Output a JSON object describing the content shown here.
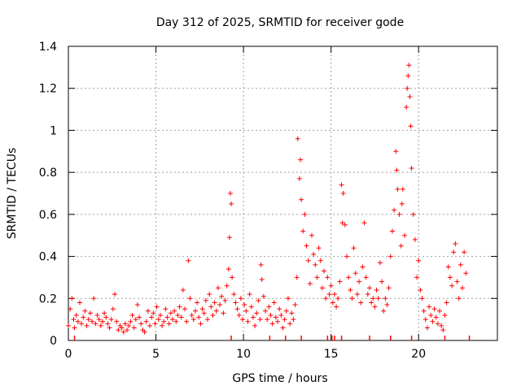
{
  "chart_data": {
    "type": "scatter",
    "title": "Day 312 of 2025, SRMTID for receiver gode",
    "xlabel": "GPS time / hours",
    "ylabel": "SRMTID / TECUs",
    "xlim": [
      0,
      24.5
    ],
    "ylim": [
      0,
      1.4
    ],
    "xticks": [
      0,
      5,
      10,
      15,
      20
    ],
    "xtick_labels": [
      "0",
      "5",
      "10",
      "15",
      "20"
    ],
    "yticks": [
      0,
      0.2,
      0.4,
      0.6,
      0.8,
      1,
      1.2,
      1.4
    ],
    "ytick_labels": [
      "0",
      "0.2",
      "0.4",
      "0.6",
      "0.8",
      "1",
      "1.2",
      "1.4"
    ],
    "grid": true,
    "marker": "+",
    "series_color": "#ff0000",
    "series": [
      {
        "name": "SRMTID",
        "x": [
          0.0,
          0.1,
          0.2,
          0.3,
          0.35,
          0.45,
          0.55,
          0.65,
          0.75,
          0.85,
          0.95,
          1.05,
          1.15,
          1.25,
          1.35,
          1.45,
          1.55,
          1.65,
          1.75,
          1.85,
          1.95,
          2.05,
          2.15,
          2.25,
          2.35,
          2.45,
          2.55,
          2.65,
          2.75,
          2.85,
          2.95,
          3.05,
          3.15,
          3.25,
          3.35,
          3.45,
          3.55,
          3.65,
          3.75,
          3.85,
          3.95,
          4.05,
          4.15,
          4.25,
          4.35,
          4.45,
          4.55,
          4.65,
          4.75,
          4.85,
          4.95,
          5.05,
          5.15,
          5.25,
          5.35,
          5.45,
          5.55,
          5.65,
          5.75,
          5.85,
          5.95,
          6.05,
          6.15,
          6.25,
          6.35,
          6.45,
          6.55,
          6.65,
          6.75,
          6.85,
          6.95,
          7.05,
          7.15,
          7.25,
          7.35,
          7.45,
          7.55,
          7.65,
          7.75,
          7.85,
          7.95,
          8.05,
          8.15,
          8.25,
          8.35,
          8.45,
          8.55,
          8.65,
          8.75,
          8.85,
          8.95,
          9.05,
          9.15,
          9.2,
          9.25,
          9.3,
          9.35,
          9.45,
          9.55,
          9.65,
          9.75,
          9.85,
          9.95,
          10.05,
          10.15,
          10.25,
          10.35,
          10.45,
          10.55,
          10.65,
          10.75,
          10.85,
          10.95,
          11.0,
          11.05,
          11.15,
          11.25,
          11.35,
          11.45,
          11.55,
          11.65,
          11.75,
          11.85,
          11.95,
          12.05,
          12.15,
          12.25,
          12.35,
          12.45,
          12.55,
          12.65,
          12.75,
          12.85,
          12.95,
          13.05,
          13.1,
          13.2,
          13.25,
          13.3,
          13.4,
          13.5,
          13.6,
          13.7,
          13.8,
          13.9,
          14.0,
          14.1,
          14.2,
          14.3,
          14.4,
          14.5,
          14.6,
          14.7,
          14.8,
          14.9,
          15.0,
          15.1,
          15.2,
          15.3,
          15.4,
          15.5,
          15.6,
          15.65,
          15.7,
          15.8,
          15.9,
          16.0,
          16.1,
          16.2,
          16.3,
          16.4,
          16.5,
          16.6,
          16.7,
          16.8,
          16.9,
          17.0,
          17.1,
          17.2,
          17.3,
          17.4,
          17.5,
          17.6,
          17.7,
          17.8,
          17.9,
          18.0,
          18.1,
          18.2,
          18.3,
          18.4,
          18.5,
          18.6,
          18.7,
          18.75,
          18.8,
          18.9,
          19.0,
          19.05,
          19.1,
          19.2,
          19.3,
          19.35,
          19.4,
          19.45,
          19.5,
          19.55,
          19.6,
          19.7,
          19.8,
          19.9,
          20.0,
          20.1,
          20.2,
          20.3,
          20.4,
          20.5,
          20.6,
          20.7,
          20.8,
          20.9,
          21.0,
          21.1,
          21.2,
          21.3,
          21.4,
          21.5,
          21.6,
          21.7,
          21.8,
          21.9,
          22.0,
          22.1,
          22.2,
          22.3,
          22.4,
          22.5,
          22.6,
          22.7
        ],
        "y": [
          0.07,
          0.15,
          0.2,
          0.1,
          0.06,
          0.12,
          0.09,
          0.18,
          0.08,
          0.11,
          0.14,
          0.07,
          0.1,
          0.13,
          0.09,
          0.2,
          0.08,
          0.12,
          0.1,
          0.07,
          0.09,
          0.13,
          0.11,
          0.08,
          0.06,
          0.1,
          0.15,
          0.22,
          0.09,
          0.05,
          0.07,
          0.06,
          0.04,
          0.08,
          0.05,
          0.07,
          0.09,
          0.12,
          0.06,
          0.1,
          0.17,
          0.11,
          0.08,
          0.05,
          0.04,
          0.09,
          0.14,
          0.07,
          0.11,
          0.13,
          0.08,
          0.16,
          0.1,
          0.12,
          0.07,
          0.09,
          0.15,
          0.11,
          0.08,
          0.13,
          0.1,
          0.14,
          0.09,
          0.12,
          0.16,
          0.11,
          0.24,
          0.15,
          0.09,
          0.38,
          0.2,
          0.12,
          0.1,
          0.14,
          0.18,
          0.11,
          0.08,
          0.15,
          0.13,
          0.19,
          0.1,
          0.22,
          0.16,
          0.12,
          0.18,
          0.14,
          0.25,
          0.17,
          0.21,
          0.13,
          0.19,
          0.26,
          0.34,
          0.49,
          0.7,
          0.65,
          0.3,
          0.22,
          0.18,
          0.15,
          0.12,
          0.2,
          0.1,
          0.17,
          0.14,
          0.09,
          0.22,
          0.16,
          0.11,
          0.07,
          0.13,
          0.19,
          0.1,
          0.36,
          0.29,
          0.21,
          0.14,
          0.1,
          0.16,
          0.12,
          0.08,
          0.18,
          0.11,
          0.09,
          0.15,
          0.12,
          0.06,
          0.1,
          0.14,
          0.2,
          0.08,
          0.13,
          0.1,
          0.17,
          0.3,
          0.96,
          0.77,
          0.86,
          0.67,
          0.52,
          0.6,
          0.45,
          0.38,
          0.27,
          0.5,
          0.41,
          0.36,
          0.3,
          0.44,
          0.38,
          0.25,
          0.33,
          0.2,
          0.3,
          0.22,
          0.26,
          0.18,
          0.22,
          0.16,
          0.2,
          0.28,
          0.74,
          0.56,
          0.7,
          0.55,
          0.4,
          0.3,
          0.24,
          0.2,
          0.44,
          0.32,
          0.22,
          0.28,
          0.18,
          0.35,
          0.56,
          0.3,
          0.22,
          0.25,
          0.18,
          0.2,
          0.16,
          0.24,
          0.2,
          0.37,
          0.28,
          0.14,
          0.2,
          0.17,
          0.25,
          0.4,
          0.52,
          0.62,
          0.9,
          0.81,
          0.72,
          0.6,
          0.45,
          0.65,
          0.72,
          0.5,
          1.11,
          1.2,
          1.26,
          1.31,
          1.16,
          1.02,
          0.82,
          0.6,
          0.48,
          0.3,
          0.38,
          0.24,
          0.2,
          0.14,
          0.1,
          0.06,
          0.16,
          0.12,
          0.09,
          0.15,
          0.11,
          0.08,
          0.14,
          0.07,
          0.05,
          0.12,
          0.18,
          0.35,
          0.3,
          0.26,
          0.42,
          0.46,
          0.28,
          0.2,
          0.36,
          0.25,
          0.42,
          0.32
        ]
      }
    ],
    "axis_markers": {
      "note": "tick marks drawn on the x axis at time of missing data",
      "x": [
        0.35,
        9.3,
        11.5,
        12.4,
        13.3,
        14.8,
        15.05,
        15.2,
        15.6,
        17.2,
        18.4,
        19.6,
        21.5,
        22.9
      ]
    }
  }
}
